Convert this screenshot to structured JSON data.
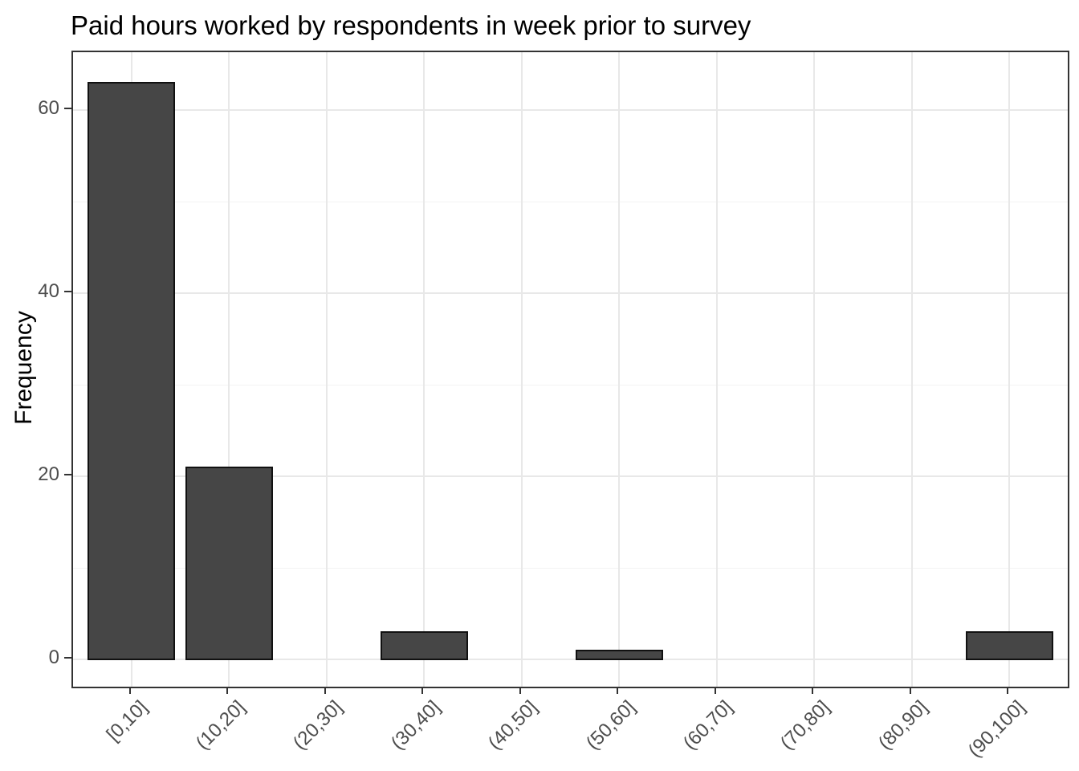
{
  "chart_data": {
    "type": "bar",
    "title": "Paid hours worked by respondents in week prior to survey",
    "xlabel": "",
    "ylabel": "Frequency",
    "categories": [
      "[0,10]",
      "(10,20]",
      "(20,30]",
      "(30,40]",
      "(40,50]",
      "(50,60]",
      "(60,70]",
      "(70,80]",
      "(80,90]",
      "(90,100]"
    ],
    "values": [
      63,
      21,
      0,
      3,
      0,
      1,
      0,
      0,
      0,
      3
    ],
    "y_ticks": [
      0,
      20,
      40,
      60
    ],
    "y_minor_gridlines": [
      10,
      30,
      50
    ],
    "ylim": [
      0,
      66
    ],
    "grid": "on",
    "legend_position": "none",
    "colors": {
      "bar_fill": "#464646",
      "bar_stroke": "#111111",
      "grid_major": "#e8e8e8",
      "grid_minor": "#f3f3f3",
      "panel_border": "#333333",
      "tick_mark": "#333333",
      "tick_label": "#4d4d4d",
      "title": "#000000",
      "background": "#ffffff"
    }
  }
}
